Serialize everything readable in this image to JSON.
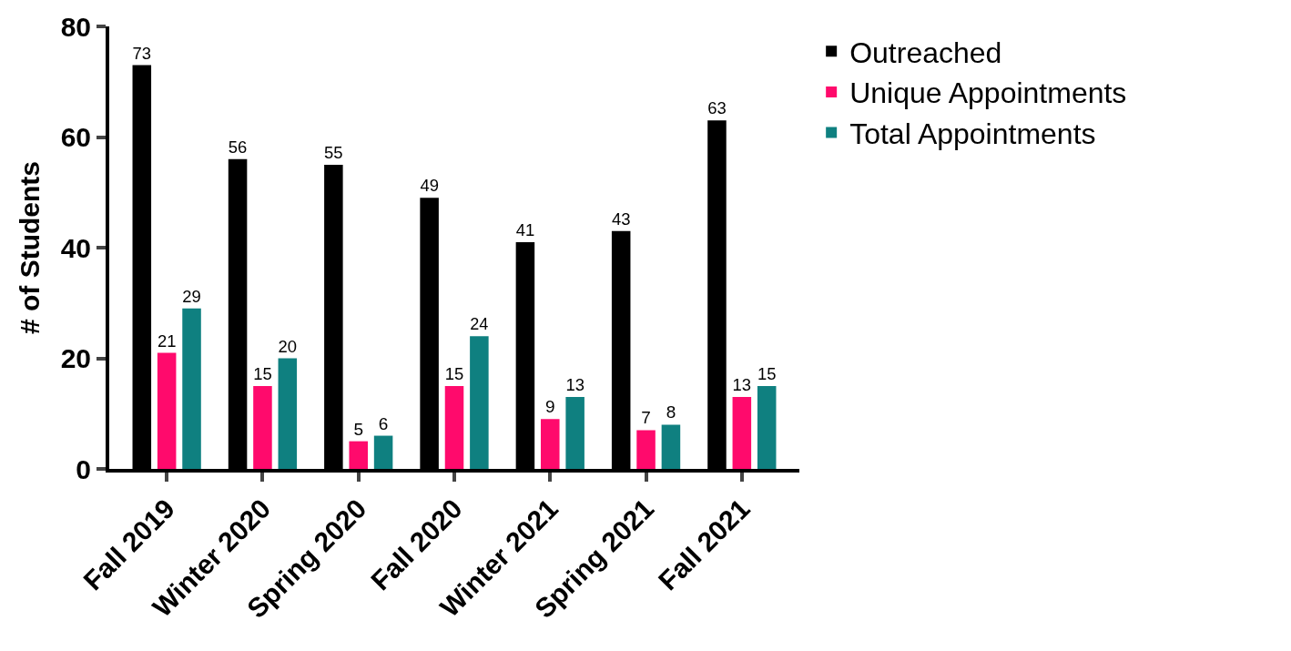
{
  "chart_data": {
    "type": "bar",
    "ylabel": "# of Students",
    "categories": [
      "Fall 2019",
      "Winter 2020",
      "Spring 2020",
      "Fall 2020",
      "Winter 2021",
      "Spring 2021",
      "Fall 2021"
    ],
    "series": [
      {
        "name": "Outreached",
        "color": "#000000",
        "values": [
          73,
          56,
          55,
          49,
          41,
          43,
          63
        ]
      },
      {
        "name": "Unique Appointments",
        "color": "#ff0a6c",
        "values": [
          21,
          15,
          5,
          15,
          9,
          7,
          13
        ]
      },
      {
        "name": "Total Appointments",
        "color": "#0f8080",
        "values": [
          29,
          20,
          6,
          24,
          13,
          8,
          15
        ]
      }
    ],
    "ylim": [
      0,
      80
    ],
    "yticks": [
      0,
      20,
      40,
      60,
      80
    ],
    "legend": "top right",
    "data_labels": true
  }
}
